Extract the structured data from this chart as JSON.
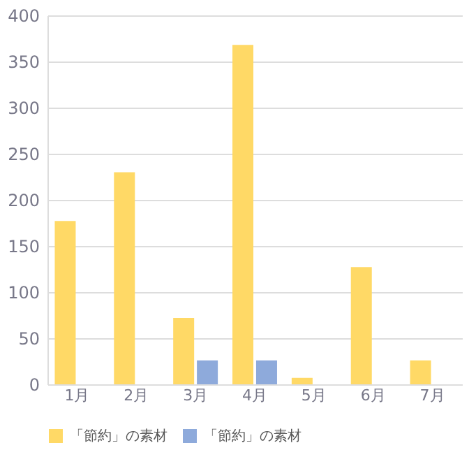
{
  "chart_data": {
    "type": "bar",
    "categories": [
      "1月",
      "2月",
      "3月",
      "4月",
      "5月",
      "6月",
      "7月"
    ],
    "series": [
      {
        "name": "「節約」の素材",
        "color": "#ffd966",
        "values": [
          177,
          230,
          72,
          368,
          7,
          127,
          26
        ]
      },
      {
        "name": "「節約」の素材",
        "color": "#8eaadb",
        "values": [
          0,
          0,
          26,
          26,
          0,
          0,
          0
        ]
      }
    ],
    "ylim": [
      0,
      400
    ],
    "yticks": [
      0,
      50,
      100,
      150,
      200,
      250,
      300,
      350,
      400
    ],
    "grid": "y",
    "legend": "bottom"
  }
}
